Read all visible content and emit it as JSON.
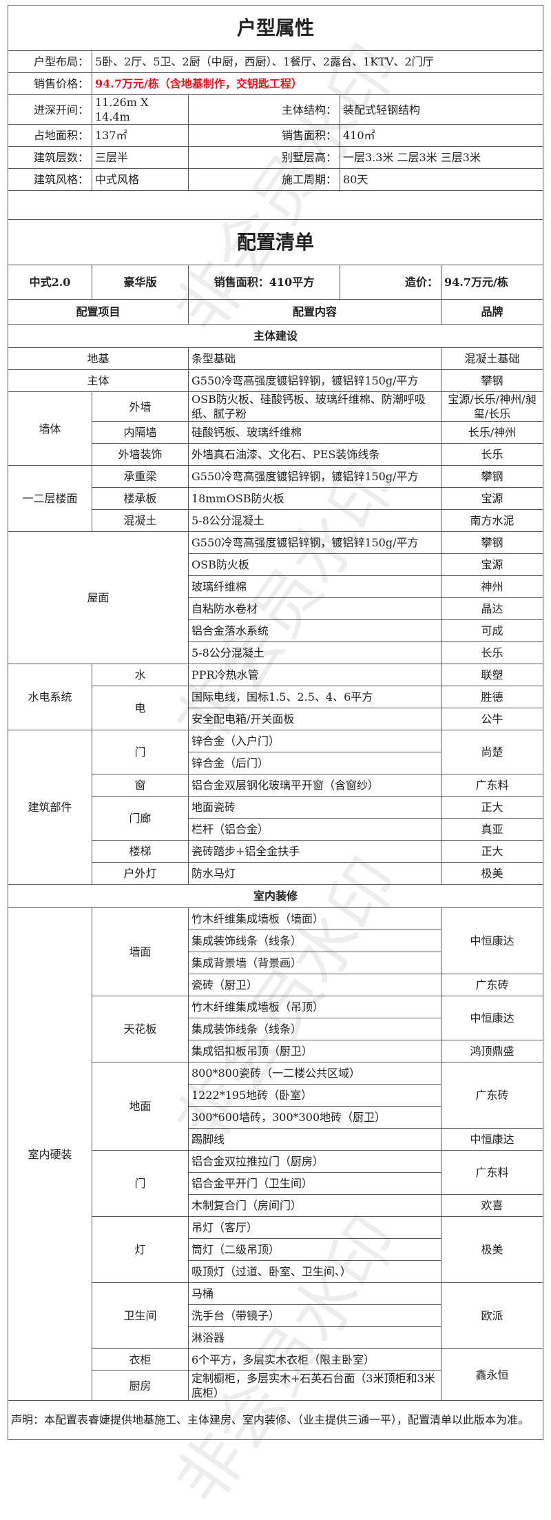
{
  "attributes": {
    "title": "户型属性",
    "layout_label": "户型布局：",
    "layout_value": "5卧、2厅、5卫、2厨（中厨，西厨）、1餐厅、2露台、1KTV、2门厅",
    "price_label": "销售价格：",
    "price_value": "94.7万元/栋（含地基制作，交钥匙工程）",
    "price_color": "#e8141e",
    "pairs": [
      {
        "label1": "进深开间：",
        "value1": "11.26m X 14.4m",
        "label2": "主体结构：",
        "value2": "装配式轻钢结构"
      },
      {
        "label1": "占地面积：",
        "value1": "137㎡",
        "label2": "销售面积：",
        "value2": "410㎡"
      },
      {
        "label1": "建筑层数：",
        "value1": "三层半",
        "label2": "别墅层高：",
        "value2": "一层3.3米 二层3米 三层3米"
      },
      {
        "label1": "建筑风格：",
        "value1": "中式风格",
        "label2": "施工周期：",
        "value2": "80天"
      }
    ]
  },
  "config": {
    "title": "配置清单",
    "plan": {
      "style": "中式2.0",
      "edition": "豪华版",
      "area": "销售面积：410平方",
      "price_label": "造价：",
      "price_value": "94.7万元/栋"
    },
    "headers": {
      "item": "配置项目",
      "content": "配置内容",
      "brand": "品牌"
    },
    "sections": [
      {
        "title": "主体建设",
        "groups": [
          {
            "name": "地基",
            "rows": [
              {
                "sub": null,
                "content": "条型基础",
                "brand": "混凝土基础",
                "brand_rows": 1
              }
            ]
          },
          {
            "name": "主体",
            "rows": [
              {
                "sub": null,
                "content": "G550冷弯高强度镀铝锌钢，镀铝锌150g/平方",
                "brand": "攀钢",
                "brand_rows": 1
              }
            ]
          },
          {
            "name": "墙体",
            "rows": [
              {
                "sub": "外墙",
                "sub_rows": 1,
                "content": "OSB防火板、硅酸钙板、玻璃纤维棉、防潮呼吸纸、腻子粉",
                "brand": "宝源/长乐/神州/昶玺/长乐",
                "brand_rows": 1
              },
              {
                "sub": "内隔墙",
                "sub_rows": 1,
                "content": "硅酸钙板、玻璃纤维棉",
                "brand": "长乐/神州",
                "brand_rows": 1
              },
              {
                "sub": "外墙装饰",
                "sub_rows": 1,
                "content": "外墙真石油漆、文化石、PES装饰线条",
                "brand": "长乐",
                "brand_rows": 1
              }
            ]
          },
          {
            "name": "一二层楼面",
            "rows": [
              {
                "sub": "承重梁",
                "sub_rows": 1,
                "content": "G550冷弯高强度镀铝锌钢，镀铝锌150g/平方",
                "brand": "攀钢",
                "brand_rows": 1
              },
              {
                "sub": "楼承板",
                "sub_rows": 1,
                "content": "18mmOSB防火板",
                "brand": "宝源",
                "brand_rows": 1
              },
              {
                "sub": "混凝土",
                "sub_rows": 1,
                "content": "5-8公分混凝土",
                "brand": "南方水泥",
                "brand_rows": 1
              }
            ]
          },
          {
            "name": "屋面",
            "rows": [
              {
                "sub": null,
                "content": "G550冷弯高强度镀铝锌钢，镀铝锌150g/平方",
                "brand": "攀钢",
                "brand_rows": 1
              },
              {
                "sub": null,
                "content": "OSB防火板",
                "brand": "宝源",
                "brand_rows": 1
              },
              {
                "sub": null,
                "content": "玻璃纤维棉",
                "brand": "神州",
                "brand_rows": 1
              },
              {
                "sub": null,
                "content": "自粘防水卷材",
                "brand": "晶达",
                "brand_rows": 1
              },
              {
                "sub": null,
                "content": "铝合金落水系统",
                "brand": "可成",
                "brand_rows": 1
              },
              {
                "sub": null,
                "content": "5-8公分混凝土",
                "brand": "长乐",
                "brand_rows": 1
              }
            ]
          },
          {
            "name": "水电系统",
            "rows": [
              {
                "sub": "水",
                "sub_rows": 1,
                "content": "PPR冷热水管",
                "brand": "联塑",
                "brand_rows": 1
              },
              {
                "sub": "电",
                "sub_rows": 2,
                "content": "国际电线，国标1.5、2.5、4、6平方",
                "brand": "胜德",
                "brand_rows": 1
              },
              {
                "content": "安全配电箱/开关面板",
                "brand": "公牛",
                "brand_rows": 1
              }
            ]
          },
          {
            "name": "建筑部件",
            "rows": [
              {
                "sub": "门",
                "sub_rows": 2,
                "content": "锌合金（入户门）",
                "brand": "尚楚",
                "brand_rows": 2
              },
              {
                "content": "锌合金（后门）"
              },
              {
                "sub": "窗",
                "sub_rows": 1,
                "content": "铝合金双层钢化玻璃平开窗（含窗纱）",
                "brand": "广东料",
                "brand_rows": 1
              },
              {
                "sub": "门廊",
                "sub_rows": 2,
                "content": "地面瓷砖",
                "brand": "正大",
                "brand_rows": 1
              },
              {
                "content": "栏杆（铝合金）",
                "brand": "真亚",
                "brand_rows": 1
              },
              {
                "sub": "楼梯",
                "sub_rows": 1,
                "content": "瓷砖踏步+铝全金扶手",
                "brand": "正大",
                "brand_rows": 1
              },
              {
                "sub": "户外灯",
                "sub_rows": 1,
                "content": "防水马灯",
                "brand": "极美",
                "brand_rows": 1
              }
            ]
          }
        ]
      },
      {
        "title": "室内装修",
        "groups": [
          {
            "name": "室内硬装",
            "rows": [
              {
                "sub": "墙面",
                "sub_rows": 4,
                "content": "竹木纤维集成墙板（墙面）",
                "brand": "中恒康达",
                "brand_rows": 3
              },
              {
                "content": "集成装饰线条（线条）"
              },
              {
                "content": "集成背景墙（背景画）"
              },
              {
                "content": "瓷砖（厨卫）",
                "brand": "广东砖",
                "brand_rows": 1
              },
              {
                "sub": "天花板",
                "sub_rows": 3,
                "content": "竹木纤维集成墙板（吊顶）",
                "brand": "中恒康达",
                "brand_rows": 2
              },
              {
                "content": "集成装饰线条（线条）"
              },
              {
                "content": "集成铝扣板吊顶（厨卫）",
                "brand": "鸿顶鼎盛",
                "brand_rows": 1
              },
              {
                "sub": "地面",
                "sub_rows": 4,
                "content": "800*800瓷砖（一二楼公共区域）",
                "brand": "广东砖",
                "brand_rows": 3
              },
              {
                "content": "1222*195地砖（卧室）"
              },
              {
                "content": "300*600墙砖，300*300地砖（厨卫）"
              },
              {
                "content": "踢脚线",
                "brand": "中恒康达",
                "brand_rows": 1
              },
              {
                "sub": "门",
                "sub_rows": 3,
                "content": "铝合金双拉推拉门（厨房）",
                "brand": "广东料",
                "brand_rows": 2
              },
              {
                "content": "铝合金平开门（卫生间）"
              },
              {
                "content": "木制复合门（房间门）",
                "brand": "欢喜",
                "brand_rows": 1
              },
              {
                "sub": "灯",
                "sub_rows": 3,
                "content": "吊灯（客厅）",
                "brand": "极美",
                "brand_rows": 3
              },
              {
                "content": "筒灯（二级吊顶）"
              },
              {
                "content": "吸顶灯（过道、卧室、卫生间、）"
              },
              {
                "sub": "卫生间",
                "sub_rows": 3,
                "content": "马桶",
                "brand": "欧派",
                "brand_rows": 3
              },
              {
                "content": "洗手台（带镜子）"
              },
              {
                "content": "淋浴器"
              },
              {
                "sub": "衣柜",
                "sub_rows": 1,
                "content": "6个平方，多层实木衣柜（限主卧室）",
                "brand": "鑫永恒",
                "brand_rows": 2
              },
              {
                "sub": "厨房",
                "sub_rows": 1,
                "content": "定制橱柜，多层实木+石英石台面（3米顶柜和3米底柜）"
              }
            ]
          }
        ]
      }
    ],
    "footer": "声明：本配置表睿婕提供地基施工、主体建房、室内装修、（业主提供三通一平），配置清单以此版本为准。"
  },
  "watermark": "非会员水印"
}
